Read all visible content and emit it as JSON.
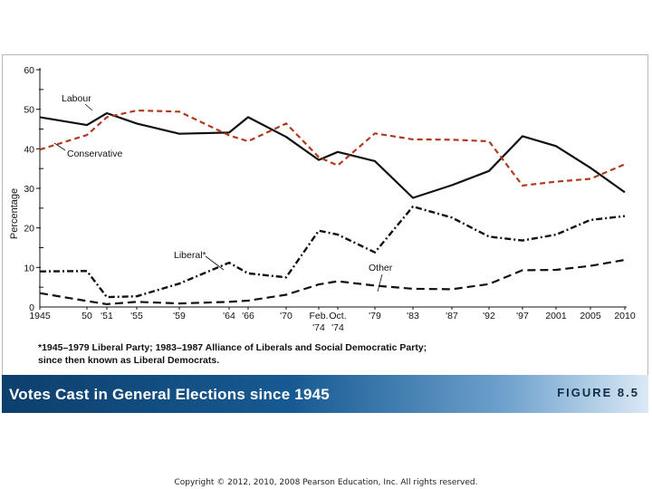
{
  "chart_data": {
    "type": "line",
    "title": "Votes Cast in General Elections since 1945",
    "ylabel": "Percentage",
    "xlabel": "",
    "ylim": [
      0,
      60
    ],
    "yticks": [
      0,
      10,
      20,
      30,
      40,
      50,
      60
    ],
    "x_tick_labels": [
      "1945",
      "50",
      "'51",
      "'55",
      "'59",
      "'64",
      "'66",
      "'70",
      "Feb.",
      "Oct.",
      "'74",
      "'74",
      "'79",
      "'83",
      "'87",
      "'92",
      "'97",
      "2001",
      "2005",
      "2010"
    ],
    "series": [
      {
        "name": "Labour",
        "style": "solid",
        "color": "#111111",
        "points": [
          [
            "1945",
            48
          ],
          [
            "1950",
            46
          ],
          [
            "1951",
            49
          ],
          [
            "1955",
            46.4
          ],
          [
            "1959",
            43.8
          ],
          [
            "1964",
            44.1
          ],
          [
            "1966",
            48
          ],
          [
            "1970",
            43
          ],
          [
            "Feb 1974",
            37.2
          ],
          [
            "Oct 1974",
            39.2
          ],
          [
            "1979",
            36.9
          ],
          [
            "1983",
            27.6
          ],
          [
            "1987",
            30.8
          ],
          [
            "1992",
            34.4
          ],
          [
            "1997",
            43.2
          ],
          [
            "2001",
            40.7
          ],
          [
            "2005",
            35.2
          ],
          [
            "2010",
            29
          ]
        ]
      },
      {
        "name": "Conservative",
        "style": "dashed",
        "color": "#b03a1e",
        "points": [
          [
            "1945",
            39.8
          ],
          [
            "1950",
            43.5
          ],
          [
            "1951",
            48
          ],
          [
            "1955",
            49.7
          ],
          [
            "1959",
            49.4
          ],
          [
            "1964",
            43.4
          ],
          [
            "1966",
            41.9
          ],
          [
            "1970",
            46.4
          ],
          [
            "Feb 1974",
            37.9
          ],
          [
            "Oct 1974",
            35.8
          ],
          [
            "1979",
            43.9
          ],
          [
            "1983",
            42.4
          ],
          [
            "1987",
            42.3
          ],
          [
            "1992",
            41.9
          ],
          [
            "1997",
            30.7
          ],
          [
            "2001",
            31.7
          ],
          [
            "2005",
            32.4
          ],
          [
            "2010",
            36.1
          ]
        ]
      },
      {
        "name": "Liberal*",
        "style": "dash-dot",
        "color": "#111111",
        "points": [
          [
            "1945",
            9
          ],
          [
            "1950",
            9.1
          ],
          [
            "1951",
            2.5
          ],
          [
            "1955",
            2.7
          ],
          [
            "1959",
            5.9
          ],
          [
            "1964",
            11.2
          ],
          [
            "1966",
            8.5
          ],
          [
            "1970",
            7.5
          ],
          [
            "Feb 1974",
            19.3
          ],
          [
            "Oct 1974",
            18.3
          ],
          [
            "1979",
            13.8
          ],
          [
            "1983",
            25.4
          ],
          [
            "1987",
            22.6
          ],
          [
            "1992",
            17.8
          ],
          [
            "1997",
            16.8
          ],
          [
            "2001",
            18.3
          ],
          [
            "2005",
            22
          ],
          [
            "2010",
            23
          ]
        ]
      },
      {
        "name": "Other",
        "style": "long-dash",
        "color": "#111111",
        "points": [
          [
            "1945",
            3.5
          ],
          [
            "1950",
            1.5
          ],
          [
            "1951",
            0.7
          ],
          [
            "1955",
            1.3
          ],
          [
            "1959",
            0.9
          ],
          [
            "1964",
            1.3
          ],
          [
            "1966",
            1.6
          ],
          [
            "1970",
            3.1
          ],
          [
            "Feb 1974",
            5.7
          ],
          [
            "Oct 1974",
            6.5
          ],
          [
            "1979",
            5.4
          ],
          [
            "1983",
            4.6
          ],
          [
            "1987",
            4.5
          ],
          [
            "1992",
            5.8
          ],
          [
            "1997",
            9.3
          ],
          [
            "2001",
            9.4
          ],
          [
            "2005",
            10.4
          ],
          [
            "2010",
            11.9
          ]
        ]
      }
    ]
  },
  "footnote": {
    "line1": "*1945–1979 Liberal Party; 1983–1987 Alliance of Liberals and Social Democratic Party;",
    "line2": "since then known as Liberal Democrats."
  },
  "banner": {
    "title": "Votes Cast in General Elections since 1945",
    "figure_label": "FIGURE 8.5"
  },
  "copyright": "Copyright © 2012, 2010, 2008 Pearson Education, Inc. All rights reserved.",
  "colors": {
    "conservative": "#b03a1e",
    "ink": "#111111",
    "banner_dark": "#0d3f6c",
    "banner_light": "#dbe9f5"
  }
}
